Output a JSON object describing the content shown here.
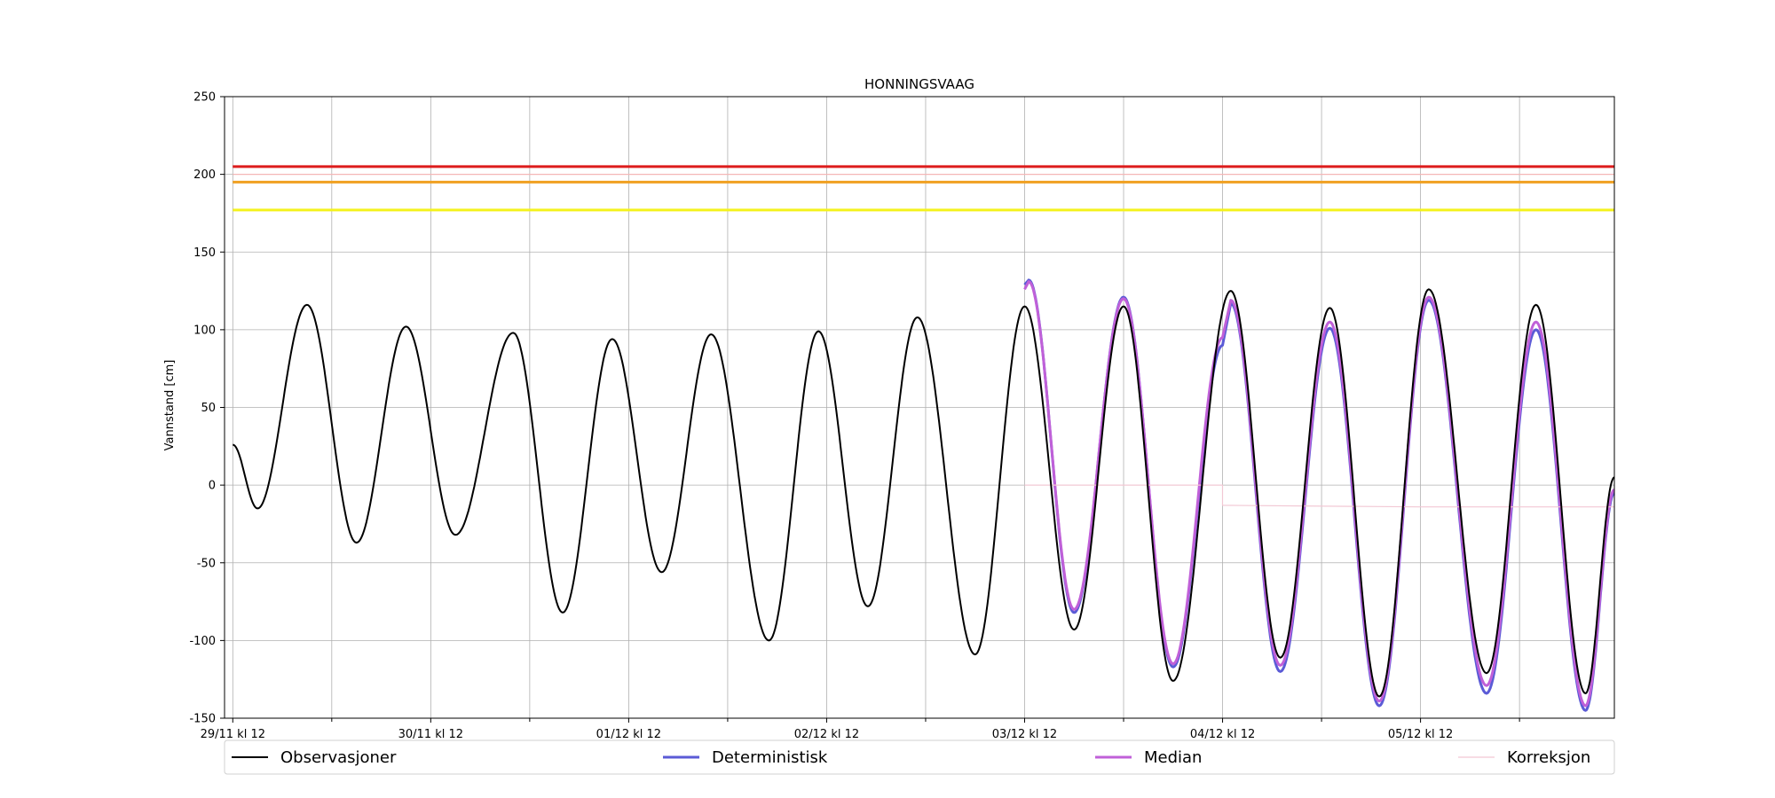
{
  "chart_data": {
    "type": "line",
    "title": "HONNINGSVAAG",
    "ylabel": "Vannstand [cm]",
    "xlabel": "",
    "ylim": [
      -150,
      250
    ],
    "y_ticks": [
      -150,
      -100,
      -50,
      0,
      50,
      100,
      150,
      200,
      250
    ],
    "x_unit": "hours since 29/11 kl 12",
    "xlim": [
      -1,
      167.5
    ],
    "x_ticks": [
      {
        "hour": 0,
        "label": "29/11 kl 12"
      },
      {
        "hour": 24,
        "label": "30/11 kl 12"
      },
      {
        "hour": 48,
        "label": "01/12 kl 12"
      },
      {
        "hour": 72,
        "label": "02/12 kl 12"
      },
      {
        "hour": 96,
        "label": "03/12 kl 12"
      },
      {
        "hour": 120,
        "label": "04/12 kl 12"
      },
      {
        "hour": 144,
        "label": "05/12 kl 12"
      }
    ],
    "x_minor_ticks": [
      12,
      36,
      60,
      84,
      108,
      132,
      156
    ],
    "grid": true,
    "legend_position": "bottom",
    "threshold_lines": [
      {
        "value": 205,
        "color": "#dd1c1c"
      },
      {
        "value": 200,
        "color": "#f4b6b6"
      },
      {
        "value": 195,
        "color": "#f0a020"
      },
      {
        "value": 177,
        "color": "#f4f21e"
      }
    ],
    "series": [
      {
        "name": "Observasjoner",
        "color": "#000000",
        "points": [
          [
            0,
            26
          ],
          [
            3,
            -15
          ],
          [
            9,
            116
          ],
          [
            15,
            -37
          ],
          [
            21,
            102
          ],
          [
            27,
            -32
          ],
          [
            34,
            98
          ],
          [
            40,
            -82
          ],
          [
            46,
            94
          ],
          [
            52,
            -56
          ],
          [
            58,
            97
          ],
          [
            65,
            -100
          ],
          [
            71,
            99
          ],
          [
            77,
            -78
          ],
          [
            83,
            108
          ],
          [
            90,
            -109
          ],
          [
            96,
            115
          ],
          [
            102,
            -93
          ],
          [
            108,
            115
          ],
          [
            114,
            -126
          ],
          [
            121,
            125
          ],
          [
            127,
            -111
          ],
          [
            133,
            114
          ],
          [
            139,
            -136
          ],
          [
            145,
            126
          ],
          [
            152,
            -121
          ],
          [
            158,
            116
          ],
          [
            164,
            -134
          ],
          [
            167.5,
            5
          ]
        ]
      },
      {
        "name": "Deterministisk",
        "color": "#5b5bd6",
        "points": [
          [
            96,
            129
          ],
          [
            96.5,
            132
          ],
          [
            102,
            -82
          ],
          [
            108,
            121
          ],
          [
            114,
            -117
          ],
          [
            120,
            90
          ],
          [
            121,
            117
          ],
          [
            127,
            -120
          ],
          [
            133,
            101
          ],
          [
            139,
            -142
          ],
          [
            145,
            119
          ],
          [
            152,
            -134
          ],
          [
            158,
            100
          ],
          [
            164,
            -145
          ],
          [
            167.5,
            -5
          ]
        ]
      },
      {
        "name": "Median",
        "color": "#c060d8",
        "points": [
          [
            96,
            126
          ],
          [
            96.5,
            131
          ],
          [
            102,
            -80
          ],
          [
            108,
            120
          ],
          [
            114,
            -115
          ],
          [
            120,
            95
          ],
          [
            121,
            119
          ],
          [
            127,
            -116
          ],
          [
            133,
            105
          ],
          [
            139,
            -139
          ],
          [
            145,
            121
          ],
          [
            152,
            -129
          ],
          [
            158,
            105
          ],
          [
            164,
            -142
          ],
          [
            167.5,
            -3
          ]
        ]
      },
      {
        "name": "Korreksjon",
        "color": "#f2c8d4",
        "points": [
          [
            96,
            0
          ],
          [
            120,
            0
          ],
          [
            120,
            -13
          ],
          [
            144,
            -14
          ],
          [
            167.5,
            -14
          ]
        ]
      }
    ]
  }
}
